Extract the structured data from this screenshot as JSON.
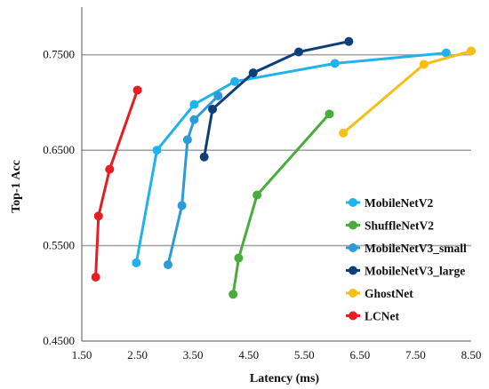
{
  "chart_data": {
    "type": "line",
    "title": "",
    "xlabel": "Latency (ms)",
    "ylabel": "Top-1 Acc",
    "xlim": [
      1.5,
      8.5
    ],
    "ylim": [
      0.45,
      0.8
    ],
    "xticks": [
      1.5,
      2.5,
      3.5,
      4.5,
      5.5,
      6.5,
      7.5,
      8.5
    ],
    "xtick_labels": [
      "1.50",
      "2.50",
      "3.50",
      "4.50",
      "5.50",
      "6.50",
      "7.50",
      "8.50"
    ],
    "yticks": [
      0.45,
      0.55,
      0.65,
      0.75
    ],
    "ytick_labels": [
      "0.4500",
      "0.5500",
      "0.6500",
      "0.7500"
    ],
    "grid": "horizontal",
    "legend_position": "bottom-right",
    "series": [
      {
        "name": "MobileNetV2",
        "color": "#1fb3ec",
        "points": [
          [
            2.48,
            0.532
          ],
          [
            2.85,
            0.65
          ],
          [
            3.52,
            0.698
          ],
          [
            4.25,
            0.722
          ],
          [
            6.05,
            0.741
          ],
          [
            8.05,
            0.752
          ]
        ]
      },
      {
        "name": "ShuffleNetV2",
        "color": "#4aac3c",
        "points": [
          [
            4.22,
            0.499
          ],
          [
            4.32,
            0.537
          ],
          [
            4.65,
            0.603
          ],
          [
            5.95,
            0.688
          ]
        ]
      },
      {
        "name": "MobileNetV3_small",
        "color": "#2d9bd8",
        "points": [
          [
            3.05,
            0.53
          ],
          [
            3.3,
            0.592
          ],
          [
            3.4,
            0.661
          ],
          [
            3.52,
            0.682
          ],
          [
            3.95,
            0.707
          ]
        ]
      },
      {
        "name": "MobileNetV3_large",
        "color": "#0f3f7a",
        "points": [
          [
            3.7,
            0.643
          ],
          [
            3.85,
            0.693
          ],
          [
            4.58,
            0.731
          ],
          [
            5.4,
            0.753
          ],
          [
            6.3,
            0.764
          ]
        ]
      },
      {
        "name": "GhostNet",
        "color": "#f7be16",
        "points": [
          [
            6.2,
            0.668
          ],
          [
            7.65,
            0.74
          ],
          [
            8.5,
            0.754
          ]
        ]
      },
      {
        "name": "LCNet",
        "color": "#e81c23",
        "points": [
          [
            1.75,
            0.517
          ],
          [
            1.8,
            0.581
          ],
          [
            2.0,
            0.63
          ],
          [
            2.5,
            0.713
          ]
        ]
      }
    ]
  }
}
